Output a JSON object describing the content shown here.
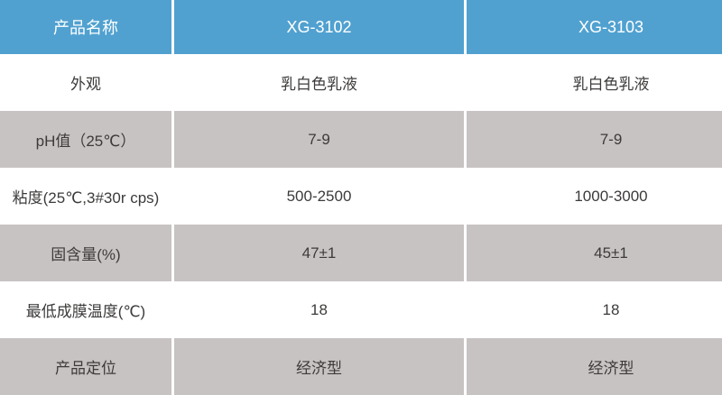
{
  "chart_data": {
    "type": "table",
    "columns": [
      "产品名称",
      "XG-3102",
      "XG-3103"
    ],
    "rows": [
      [
        "外观",
        "乳白色乳液",
        "乳白色乳液"
      ],
      [
        "pH值（25℃）",
        "7-9",
        "7-9"
      ],
      [
        "粘度(25℃,3#30r cps)",
        "500-2500",
        "1000-3000"
      ],
      [
        "固含量(%)",
        "47±1",
        "45±1"
      ],
      [
        "最低成膜温度(℃)",
        "18",
        "18"
      ],
      [
        "产品定位",
        "经济型",
        "经济型"
      ]
    ]
  },
  "colors": {
    "header_bg": "#50a1d0",
    "header_text": "#ffffff",
    "row_gray_bg": "#c7c3c2",
    "row_white_bg": "#ffffff",
    "body_text": "#3d3b3a",
    "divider": "#ffffff"
  }
}
